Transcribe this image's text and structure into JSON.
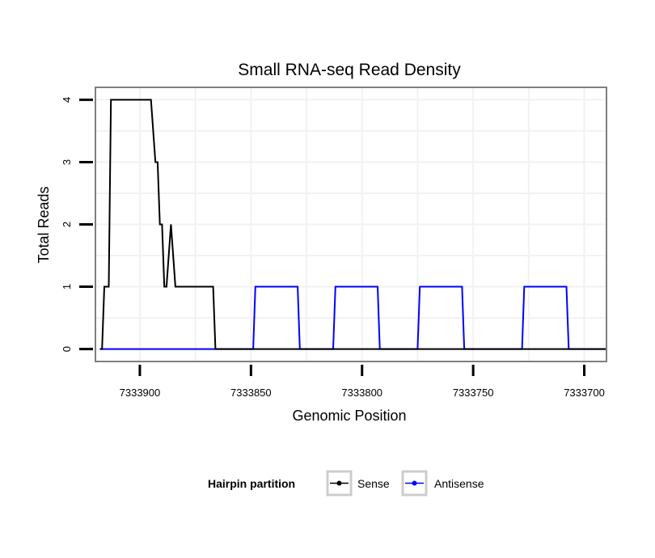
{
  "chart_data": {
    "type": "line",
    "title": "Small RNA-seq Read Density",
    "xlabel": "Genomic Position",
    "ylabel": "Total Reads",
    "x_reversed": true,
    "xlim": [
      7333920,
      7333690
    ],
    "ylim": [
      -0.2,
      4.2
    ],
    "x_ticks": [
      7333900,
      7333850,
      7333800,
      7333750,
      7333700
    ],
    "x_tick_labels": [
      "7333900",
      "7333850",
      "7333800",
      "7333750",
      "7333700"
    ],
    "y_ticks": [
      0,
      1,
      2,
      3,
      4
    ],
    "y_tick_labels": [
      "0",
      "1",
      "2",
      "3",
      "4"
    ],
    "grid": true,
    "legend": {
      "title": "Hairpin partition",
      "position": "bottom",
      "entries": [
        "Sense",
        "Antisense"
      ]
    },
    "series": [
      {
        "name": "Sense",
        "color": "#000000",
        "x": [
          7333918,
          7333917,
          7333916,
          7333914,
          7333913,
          7333906,
          7333905,
          7333904,
          7333903,
          7333902,
          7333901,
          7333900,
          7333899,
          7333898,
          7333897,
          7333895,
          7333893,
          7333892,
          7333891,
          7333890,
          7333889,
          7333888,
          7333886,
          7333884,
          7333882,
          7333878,
          7333876,
          7333874,
          7333872,
          7333870,
          7333868,
          7333867,
          7333866,
          7333865,
          7333864,
          7333863,
          7333690
        ],
        "values": [
          0,
          0,
          1,
          1,
          4,
          4,
          4,
          4,
          4,
          4,
          4,
          4,
          4,
          4,
          4,
          4,
          3,
          3,
          2,
          2,
          1,
          1,
          2,
          1,
          1,
          1,
          1,
          1,
          1,
          1,
          1,
          1,
          0,
          0,
          0,
          0,
          0
        ]
      },
      {
        "name": "Antisense",
        "color": "#0000ff",
        "x": [
          7333918,
          7333849,
          7333848,
          7333829,
          7333828,
          7333813,
          7333812,
          7333793,
          7333792,
          7333775,
          7333774,
          7333755,
          7333754,
          7333728,
          7333727,
          7333708,
          7333707,
          7333690
        ],
        "values": [
          0,
          0,
          1,
          1,
          0,
          0,
          1,
          1,
          0,
          0,
          1,
          1,
          0,
          0,
          1,
          1,
          0,
          0
        ]
      }
    ]
  }
}
